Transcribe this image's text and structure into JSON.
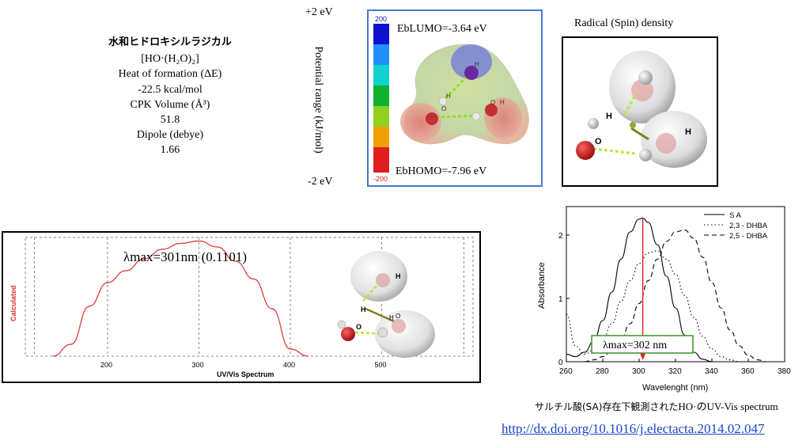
{
  "info": {
    "title": "水和ヒドロキシルラジカル",
    "formula": "[HO·(H₂O)₂]",
    "heat_label": "Heat of formation (ΔE)",
    "heat_value": "-22.5 kcal/mol",
    "cpk_label": "CPK Volume (Å³)",
    "cpk_value": "51.8",
    "dipole_label": "Dipole (debye)",
    "dipole_value": "1.66"
  },
  "potential": {
    "top": "+2 eV",
    "bottom": "-2 eV",
    "axis_label": "Potential range (kJ/mol)"
  },
  "esp": {
    "scale_top": "200",
    "scale_bottom": "-200",
    "lumo": "EbLUMO=-3.64 eV",
    "homo": "EbHOMO=-7.96 eV",
    "scale_colors": [
      "#1010d0",
      "#2090ff",
      "#10d0d0",
      "#10b030",
      "#90d020",
      "#f0a000",
      "#e02020"
    ],
    "atom_labels": [
      "H",
      "O",
      "H",
      "O",
      "H"
    ]
  },
  "spin": {
    "title": "Radical (Spin) density",
    "atom_labels": [
      "H",
      "O",
      "H"
    ]
  },
  "uv": {
    "lambda_label": "λmax=301nm (0.1101)",
    "y_label": "Calculated",
    "x_label": "UV/Vis Spectrum",
    "atom_labels": [
      "H",
      "O",
      "H",
      "O",
      "H"
    ]
  },
  "chart_data": [
    {
      "type": "line",
      "title": "",
      "xlabel": "UV/Vis Spectrum",
      "ylabel": "Calculated",
      "xlim": [
        110,
        600
      ],
      "ylim": [
        0,
        1.0
      ],
      "x_ticks": [
        "200",
        "300",
        "400",
        "500"
      ],
      "grid": true,
      "series": [
        {
          "name": "",
          "color": "#e03030",
          "x": [
            140,
            160,
            180,
            200,
            220,
            240,
            260,
            280,
            300,
            320,
            340,
            360,
            380,
            400,
            420
          ],
          "y": [
            0,
            0.1,
            0.42,
            0.62,
            0.72,
            0.82,
            0.9,
            0.95,
            0.97,
            0.92,
            0.8,
            0.65,
            0.4,
            0.06,
            0
          ]
        }
      ]
    },
    {
      "type": "line",
      "title": "",
      "xlabel": "Wavelenght (nm)",
      "ylabel": "Absorbance",
      "xlim": [
        260,
        380
      ],
      "ylim": [
        0,
        2.45
      ],
      "x_ticks": [
        "260",
        "280",
        "300",
        "320",
        "340",
        "360",
        "380"
      ],
      "y_ticks": [
        "0",
        "1",
        "2"
      ],
      "legend": "top-right",
      "annotation": "λmax=302 nm",
      "annotation_x": 302,
      "series": [
        {
          "name": "S A",
          "dash": "solid",
          "x": [
            260,
            265,
            270,
            275,
            280,
            285,
            290,
            295,
            300,
            302,
            305,
            310,
            315,
            320,
            325,
            330,
            335,
            340
          ],
          "y": [
            0.12,
            0.08,
            0.15,
            0.32,
            0.65,
            1.1,
            1.62,
            2.05,
            2.25,
            2.27,
            2.2,
            1.85,
            1.35,
            0.85,
            0.42,
            0.15,
            0.04,
            0
          ]
        },
        {
          "name": "2,3 - DHBA",
          "dash": "dotted",
          "x": [
            260,
            265,
            270,
            275,
            280,
            285,
            290,
            295,
            300,
            305,
            310,
            315,
            320,
            325,
            330,
            335,
            340,
            345,
            350,
            355
          ],
          "y": [
            0.75,
            0.25,
            0.12,
            0.18,
            0.35,
            0.6,
            0.95,
            1.28,
            1.55,
            1.72,
            1.75,
            1.62,
            1.38,
            1.05,
            0.7,
            0.4,
            0.2,
            0.08,
            0.03,
            0
          ]
        },
        {
          "name": "2,5 - DHBA",
          "dash": "dashed",
          "x": [
            270,
            275,
            280,
            285,
            290,
            295,
            300,
            305,
            310,
            315,
            320,
            325,
            330,
            335,
            340,
            345,
            350,
            355,
            360,
            365,
            370
          ],
          "y": [
            0,
            0.03,
            0.08,
            0.18,
            0.35,
            0.6,
            0.92,
            1.28,
            1.62,
            1.9,
            2.05,
            2.08,
            1.95,
            1.65,
            1.25,
            0.85,
            0.5,
            0.25,
            0.1,
            0.03,
            0
          ]
        }
      ]
    }
  ],
  "caption": {
    "jp": "サルチル酸(SA)存在下観測された",
    "en": "HO·のUV-Vis spectrum"
  },
  "doi": "http://dx.doi.org/10.1016/j.electacta.2014.02.047"
}
